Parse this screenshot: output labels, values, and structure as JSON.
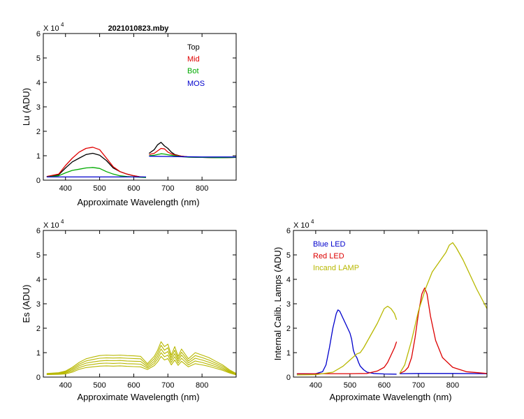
{
  "chart_data": [
    {
      "id": "lu",
      "type": "line",
      "title": "2021010823.mby",
      "xlabel": "Approximate Wavelength (nm)",
      "ylabel": "Lu (ADU)",
      "exponent_label": "X 10",
      "exponent": "4",
      "xlim": [
        335,
        900
      ],
      "ylim": [
        0,
        60000
      ],
      "xticks": [
        400,
        500,
        600,
        700,
        800
      ],
      "yticks": [
        0,
        10000,
        20000,
        30000,
        40000,
        50000,
        60000
      ],
      "ytick_labels": [
        "0",
        "1",
        "2",
        "3",
        "4",
        "5",
        "6"
      ],
      "legend": {
        "placement": "top-right",
        "entries": [
          {
            "label": "Top",
            "color": "#000000"
          },
          {
            "label": "Mid",
            "color": "#e00000"
          },
          {
            "label": "Bot",
            "color": "#00aa00"
          },
          {
            "label": "MOS",
            "color": "#0000cc"
          }
        ]
      },
      "series": [
        {
          "name": "Top",
          "color": "#000000",
          "segments": [
            {
              "x": [
                345,
                380,
                400,
                420,
                440,
                460,
                480,
                500,
                520,
                540,
                560,
                580,
                600,
                620,
                636
              ],
              "y": [
                1500,
                2200,
                5000,
                7500,
                9000,
                10500,
                11000,
                10200,
                8000,
                5000,
                3500,
                2500,
                1800,
                1300,
                1200
              ]
            },
            {
              "x": [
                645,
                660,
                670,
                680,
                690,
                700,
                710,
                720,
                740,
                760,
                800,
                850,
                900
              ],
              "y": [
                11000,
                12500,
                14500,
                15500,
                14000,
                13000,
                11500,
                10500,
                9800,
                9500,
                9300,
                9200,
                9300
              ]
            }
          ]
        },
        {
          "name": "Mid",
          "color": "#e00000",
          "segments": [
            {
              "x": [
                345,
                380,
                400,
                420,
                440,
                460,
                480,
                500,
                520,
                540,
                560,
                580,
                600,
                620,
                636
              ],
              "y": [
                1500,
                2500,
                6000,
                9000,
                11500,
                13000,
                13500,
                12500,
                9000,
                5500,
                3500,
                2500,
                1800,
                1300,
                1200
              ]
            },
            {
              "x": [
                645,
                660,
                670,
                680,
                690,
                700,
                710,
                720,
                740,
                760,
                800,
                850,
                900
              ],
              "y": [
                10500,
                11000,
                12000,
                13000,
                12800,
                11500,
                10800,
                10300,
                9800,
                9500,
                9300,
                9200,
                9300
              ]
            }
          ]
        },
        {
          "name": "Bot",
          "color": "#00aa00",
          "segments": [
            {
              "x": [
                345,
                380,
                400,
                420,
                440,
                460,
                480,
                500,
                520,
                540,
                560,
                580,
                600,
                620,
                636
              ],
              "y": [
                1300,
                1800,
                3000,
                4000,
                4500,
                5000,
                5200,
                4800,
                3500,
                2500,
                1800,
                1500,
                1300,
                1200,
                1100
              ]
            },
            {
              "x": [
                645,
                660,
                670,
                680,
                690,
                700,
                710,
                720,
                740,
                760,
                800,
                850,
                900
              ],
              "y": [
                10000,
                10200,
                10500,
                10800,
                10700,
                10400,
                10200,
                10000,
                9600,
                9400,
                9300,
                9200,
                9300
              ]
            }
          ]
        },
        {
          "name": "MOS",
          "color": "#0000cc",
          "segments": [
            {
              "x": [
                345,
                400,
                500,
                600,
                636
              ],
              "y": [
                1300,
                1300,
                1300,
                1300,
                1300
              ]
            },
            {
              "x": [
                645,
                700,
                800,
                900
              ],
              "y": [
                9800,
                9700,
                9500,
                9500
              ]
            }
          ]
        }
      ]
    },
    {
      "id": "es",
      "type": "line",
      "title": "",
      "xlabel": "Approximate Wavelength (nm)",
      "ylabel": "Es  (ADU)",
      "exponent_label": "X 10",
      "exponent": "4",
      "xlim": [
        335,
        900
      ],
      "ylim": [
        0,
        60000
      ],
      "xticks": [
        400,
        500,
        600,
        700,
        800
      ],
      "yticks": [
        0,
        10000,
        20000,
        30000,
        40000,
        50000,
        60000
      ],
      "ytick_labels": [
        "0",
        "1",
        "2",
        "3",
        "4",
        "5",
        "6"
      ],
      "series_color": "#b8b800",
      "x": [
        345,
        380,
        400,
        420,
        440,
        460,
        480,
        500,
        520,
        540,
        560,
        580,
        600,
        620,
        640,
        660,
        670,
        680,
        690,
        700,
        710,
        720,
        730,
        740,
        760,
        780,
        800,
        820,
        840,
        860,
        880,
        900
      ],
      "series": [
        {
          "values": [
            1500,
            1800,
            2500,
            4000,
            6000,
            7500,
            8200,
            8800,
            9000,
            8900,
            9000,
            8800,
            8700,
            8500,
            5500,
            8500,
            11000,
            14500,
            12500,
            13500,
            9000,
            12500,
            8500,
            11500,
            7500,
            10000,
            9000,
            8000,
            6500,
            5000,
            3000,
            1500
          ]
        },
        {
          "values": [
            1300,
            1600,
            2200,
            3500,
            5300,
            6600,
            7200,
            7700,
            7900,
            7800,
            7900,
            7700,
            7600,
            7500,
            4900,
            7500,
            9800,
            13000,
            11000,
            12000,
            8000,
            11000,
            7500,
            10200,
            6600,
            8800,
            8000,
            7000,
            5700,
            4400,
            2600,
            1300
          ]
        },
        {
          "values": [
            1200,
            1400,
            1900,
            3000,
            4600,
            5700,
            6200,
            6600,
            6800,
            6700,
            6800,
            6600,
            6500,
            6400,
            4300,
            6500,
            8600,
            11500,
            9600,
            10500,
            7000,
            9600,
            6600,
            9000,
            5800,
            7700,
            7000,
            6100,
            5000,
            3800,
            2300,
            1100
          ]
        },
        {
          "values": [
            1100,
            1200,
            1600,
            2500,
            3900,
            4800,
            5200,
            5600,
            5700,
            5600,
            5700,
            5500,
            5400,
            5300,
            3700,
            5600,
            7400,
            10000,
            8300,
            9000,
            6000,
            8300,
            5700,
            7700,
            5000,
            6600,
            6000,
            5200,
            4300,
            3300,
            2000,
            1000
          ]
        },
        {
          "values": [
            1000,
            1100,
            1300,
            2000,
            3200,
            3900,
            4200,
            4500,
            4600,
            4500,
            4600,
            4400,
            4300,
            4200,
            3100,
            4700,
            6200,
            8500,
            7000,
            7600,
            5000,
            7000,
            4800,
            6500,
            4200,
            5500,
            5000,
            4400,
            3600,
            2800,
            1700,
            900
          ]
        }
      ]
    },
    {
      "id": "lamps",
      "type": "line",
      "title": "",
      "xlabel": "Approximate Wavelength (nm)",
      "ylabel": "Internal Calib. Lamps  (ADU)",
      "exponent_label": "X 10",
      "exponent": "4",
      "xlim": [
        335,
        900
      ],
      "ylim": [
        0,
        60000
      ],
      "xticks": [
        400,
        500,
        600,
        700,
        800
      ],
      "yticks": [
        0,
        10000,
        20000,
        30000,
        40000,
        50000,
        60000
      ],
      "ytick_labels": [
        "0",
        "1",
        "2",
        "3",
        "4",
        "5",
        "6"
      ],
      "legend": {
        "placement": "top-left",
        "entries": [
          {
            "label": "Blue LED",
            "color": "#0000cc"
          },
          {
            "label": "Red LED",
            "color": "#dd0000"
          },
          {
            "label": "Incand LAMP",
            "color": "#b8b800"
          }
        ]
      },
      "series": [
        {
          "name": "Blue LED",
          "color": "#0000cc",
          "segments": [
            {
              "x": [
                345,
                400,
                420,
                430,
                440,
                450,
                460,
                465,
                470,
                480,
                490,
                500,
                505,
                510,
                515,
                520,
                525,
                530,
                540,
                550,
                570,
                600,
                636
              ],
              "y": [
                1300,
                1400,
                2200,
                5000,
                12000,
                20000,
                26000,
                27500,
                27000,
                24000,
                21000,
                18000,
                15500,
                11000,
                9000,
                8000,
                6000,
                4500,
                3000,
                2000,
                1500,
                1300,
                1200
              ]
            },
            {
              "x": [
                645,
                700,
                800,
                900
              ],
              "y": [
                1400,
                1500,
                1500,
                1400
              ]
            }
          ]
        },
        {
          "name": "Red LED",
          "color": "#dd0000",
          "segments": [
            {
              "x": [
                345,
                400,
                500,
                550,
                580,
                600,
                610,
                620,
                630,
                636
              ],
              "y": [
                1400,
                1400,
                1400,
                1500,
                2500,
                4000,
                6000,
                9000,
                12000,
                14500
              ]
            },
            {
              "x": [
                645,
                660,
                670,
                680,
                690,
                700,
                710,
                718,
                725,
                735,
                750,
                770,
                800,
                840,
                900
              ],
              "y": [
                1500,
                2500,
                4000,
                8000,
                16000,
                26000,
                34000,
                36500,
                34000,
                25000,
                15000,
                8000,
                4000,
                2200,
                1500
              ]
            }
          ]
        },
        {
          "name": "Incand LAMP",
          "color": "#b8b800",
          "segments": [
            {
              "x": [
                345,
                400,
                450,
                480,
                500,
                520,
                530,
                540,
                560,
                580,
                600,
                610,
                620,
                630,
                636
              ],
              "y": [
                900,
                1000,
                2000,
                4500,
                7000,
                9500,
                10000,
                12000,
                17000,
                22000,
                28000,
                29000,
                28000,
                26000,
                23500
              ]
            },
            {
              "x": [
                645,
                660,
                680,
                700,
                720,
                740,
                760,
                780,
                790,
                800,
                810,
                830,
                850,
                870,
                900
              ],
              "y": [
                1500,
                5000,
                15000,
                27000,
                36000,
                43000,
                47000,
                51000,
                54000,
                55000,
                53000,
                48000,
                42000,
                36000,
                28000
              ]
            }
          ]
        }
      ]
    }
  ]
}
